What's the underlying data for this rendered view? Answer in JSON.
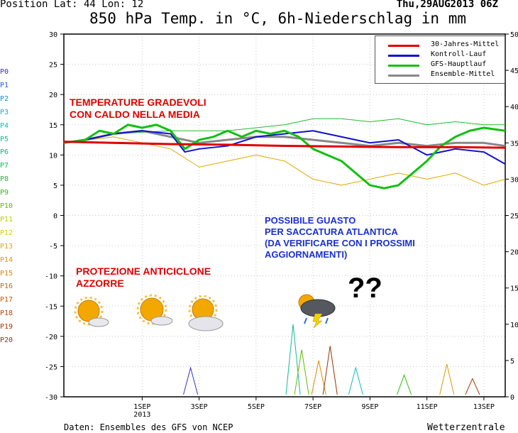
{
  "header": {
    "position_label": "Position   Lat: 44  Lon: 12",
    "run_date": "Thu,29AUG2013 06Z",
    "title": "850 hPa Temp. in °C, 6h-Niederschlag in mm"
  },
  "footer": {
    "source": "Daten: Ensembles des GFS von NCEP",
    "brand": "Wetterzentrale"
  },
  "legend": [
    {
      "label": "30-Jahres-Mittel",
      "color": "#e00000"
    },
    {
      "label": "Kontroll-Lauf",
      "color": "#1010d0"
    },
    {
      "label": "GFS-Hauptlauf",
      "color": "#10c010"
    },
    {
      "label": "Ensemble-Mittel",
      "color": "#888888"
    }
  ],
  "members": [
    {
      "label": "P0",
      "color": "#3333cc"
    },
    {
      "label": "P1",
      "color": "#2255dd"
    },
    {
      "label": "P2",
      "color": "#1188dd"
    },
    {
      "label": "P3",
      "color": "#11aacc"
    },
    {
      "label": "P4",
      "color": "#11bbbb"
    },
    {
      "label": "P5",
      "color": "#11bb99"
    },
    {
      "label": "P6",
      "color": "#11bb77"
    },
    {
      "label": "P7",
      "color": "#11bb55"
    },
    {
      "label": "P8",
      "color": "#22bb33"
    },
    {
      "label": "P9",
      "color": "#33bb11"
    },
    {
      "label": "P10",
      "color": "#66bb00"
    },
    {
      "label": "P11",
      "color": "#bbcc00"
    },
    {
      "label": "P12",
      "color": "#ddcc00"
    },
    {
      "label": "P13",
      "color": "#ddaa00"
    },
    {
      "label": "P14",
      "color": "#dd9900"
    },
    {
      "label": "P15",
      "color": "#dd8800"
    },
    {
      "label": "P16",
      "color": "#cc6600"
    },
    {
      "label": "P17",
      "color": "#cc5500"
    },
    {
      "label": "P18",
      "color": "#bb4400"
    },
    {
      "label": "P19",
      "color": "#aa3300"
    },
    {
      "label": "P20",
      "color": "#993300"
    }
  ],
  "annotations": {
    "temp_note": [
      "TEMPERATURE GRADEVOLI",
      "CON CALDO NELLA MEDIA"
    ],
    "high_note": [
      "PROTEZIONE ANTICICLONE",
      "AZZORRE"
    ],
    "trough_note": [
      "POSSIBILE GUASTO",
      "PER SACCATURA ATLANTICA",
      "(DA VERIFICARE CON I PROSSIMI",
      "AGGIORNAMENTI)"
    ],
    "question": "??"
  },
  "chart_data": {
    "type": "line",
    "title": "850 hPa Temp. in °C, 6h-Niederschlag in mm",
    "y_left": {
      "min": -30,
      "max": 30,
      "ticks": [
        30,
        25,
        20,
        15,
        10,
        5,
        0,
        -5,
        -10,
        -15,
        -20,
        -25,
        -30
      ],
      "unit": "°C"
    },
    "y_right": {
      "min": 0,
      "max": 50,
      "ticks": [
        50,
        45,
        40,
        35,
        30,
        25,
        20,
        15,
        10,
        5,
        0
      ],
      "unit": "mm"
    },
    "x_range_days": [
      29.25,
      44.75
    ],
    "x_ticks": [
      {
        "day": 32,
        "label": "1SEP",
        "sub": "2013"
      },
      {
        "day": 34,
        "label": "3SEP",
        "sub": ""
      },
      {
        "day": 36,
        "label": "5SEP",
        "sub": ""
      },
      {
        "day": 38,
        "label": "7SEP",
        "sub": ""
      },
      {
        "day": 40,
        "label": "9SEP",
        "sub": ""
      },
      {
        "day": 42,
        "label": "11SEP",
        "sub": ""
      },
      {
        "day": 44,
        "label": "13SEP",
        "sub": ""
      }
    ],
    "grid": true,
    "legend_position": "top-right",
    "series": [
      {
        "name": "30-Jahres-Mittel",
        "color": "#e00000",
        "width": 3,
        "points": [
          [
            29.25,
            12.2
          ],
          [
            31,
            12.0
          ],
          [
            33,
            11.8
          ],
          [
            35,
            11.7
          ],
          [
            37,
            11.5
          ],
          [
            39,
            11.4
          ],
          [
            41,
            11.3
          ],
          [
            43,
            11.3
          ],
          [
            44.75,
            11.2
          ]
        ]
      },
      {
        "name": "Kontroll-Lauf",
        "color": "#1010d0",
        "width": 2,
        "points": [
          [
            29.25,
            12
          ],
          [
            30,
            12.5
          ],
          [
            31,
            13.5
          ],
          [
            32,
            14
          ],
          [
            33,
            13.5
          ],
          [
            33.5,
            10.5
          ],
          [
            34,
            11
          ],
          [
            35,
            11.5
          ],
          [
            36,
            13
          ],
          [
            37,
            13.5
          ],
          [
            38,
            14
          ],
          [
            39,
            13
          ],
          [
            40,
            12
          ],
          [
            41,
            12.5
          ],
          [
            42,
            10
          ],
          [
            43,
            11
          ],
          [
            44,
            10.5
          ],
          [
            44.75,
            8.5
          ]
        ]
      },
      {
        "name": "GFS-Hauptlauf",
        "color": "#10c010",
        "width": 3,
        "points": [
          [
            29.25,
            12
          ],
          [
            30,
            12.5
          ],
          [
            30.5,
            14
          ],
          [
            31,
            13.5
          ],
          [
            31.5,
            15
          ],
          [
            32,
            14.5
          ],
          [
            32.5,
            15
          ],
          [
            33,
            14
          ],
          [
            33.5,
            11
          ],
          [
            34,
            12.5
          ],
          [
            34.5,
            13
          ],
          [
            35,
            14
          ],
          [
            35.5,
            13
          ],
          [
            36,
            14
          ],
          [
            36.5,
            13.5
          ],
          [
            37,
            14
          ],
          [
            37.5,
            13
          ],
          [
            38,
            11
          ],
          [
            38.5,
            10
          ],
          [
            39,
            9
          ],
          [
            39.5,
            7
          ],
          [
            40,
            5
          ],
          [
            40.5,
            4.5
          ],
          [
            41,
            5
          ],
          [
            41.5,
            7
          ],
          [
            42,
            9
          ],
          [
            42.5,
            11.5
          ],
          [
            43,
            13
          ],
          [
            43.5,
            14
          ],
          [
            44,
            14.5
          ],
          [
            44.75,
            14
          ]
        ]
      },
      {
        "name": "Ensemble-Mittel",
        "color": "#888888",
        "width": 3,
        "points": [
          [
            29.25,
            12
          ],
          [
            30,
            12.5
          ],
          [
            31,
            13.5
          ],
          [
            32,
            14
          ],
          [
            33,
            13
          ],
          [
            34,
            12
          ],
          [
            35,
            12.5
          ],
          [
            36,
            13
          ],
          [
            37,
            13
          ],
          [
            38,
            12.5
          ],
          [
            39,
            12
          ],
          [
            40,
            11.5
          ],
          [
            41,
            12
          ],
          [
            42,
            11.5
          ],
          [
            43,
            12
          ],
          [
            44,
            12
          ],
          [
            44.75,
            11.5
          ]
        ]
      },
      {
        "name": "Ensemble-Mitglieder (Spread oben)",
        "color": "#22bb33",
        "width": 1,
        "points": [
          [
            29.25,
            12
          ],
          [
            31,
            13.5
          ],
          [
            33,
            14
          ],
          [
            35,
            14
          ],
          [
            37,
            15
          ],
          [
            38,
            16
          ],
          [
            39,
            16
          ],
          [
            40,
            15.5
          ],
          [
            41,
            16
          ],
          [
            42,
            15
          ],
          [
            43,
            15.5
          ],
          [
            44,
            15
          ],
          [
            44.75,
            15
          ]
        ]
      },
      {
        "name": "Ensemble-Mitglieder (Spread unten)",
        "color": "#ddaa00",
        "width": 1,
        "points": [
          [
            29.25,
            12
          ],
          [
            31,
            13
          ],
          [
            33,
            11
          ],
          [
            34,
            8
          ],
          [
            35,
            9
          ],
          [
            36,
            10
          ],
          [
            37,
            9
          ],
          [
            38,
            6
          ],
          [
            39,
            5
          ],
          [
            40,
            6
          ],
          [
            41,
            7
          ],
          [
            42,
            6
          ],
          [
            43,
            7
          ],
          [
            44,
            5
          ],
          [
            44.75,
            6
          ]
        ]
      }
    ],
    "precip_peaks_mm": [
      {
        "day": 33.7,
        "mm": 4.0
      },
      {
        "day": 37.3,
        "mm": 10.0
      },
      {
        "day": 37.6,
        "mm": 6.5
      },
      {
        "day": 38.2,
        "mm": 5.0
      },
      {
        "day": 38.6,
        "mm": 7.0
      },
      {
        "day": 39.5,
        "mm": 4.0
      },
      {
        "day": 41.2,
        "mm": 3.0
      },
      {
        "day": 42.7,
        "mm": 4.5
      },
      {
        "day": 43.6,
        "mm": 2.5
      }
    ]
  }
}
